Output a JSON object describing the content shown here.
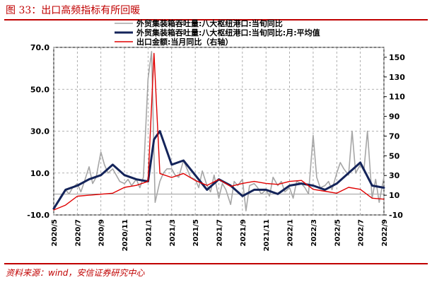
{
  "figure_title": "图 33：出口高频指标有所回暖",
  "source_note": "资料来源：wind，安信证券研究中心",
  "chart_data": {
    "type": "line",
    "left_axis": {
      "ticks": [
        "70.0",
        "50.0",
        "30.0",
        "10.0",
        "-10.0"
      ],
      "ylim": [
        -10,
        70
      ]
    },
    "right_axis": {
      "ticks": [
        "150",
        "130",
        "110",
        "90",
        "70",
        "50",
        "30",
        "10",
        "-10"
      ],
      "ylim": [
        -10,
        160
      ]
    },
    "x_labels": [
      "2020/5",
      "2020/7",
      "2020/9",
      "2020/11",
      "2021/1",
      "2021/3",
      "2021/5",
      "2021/7",
      "2021/9",
      "2021/11",
      "2022/1",
      "2022/3",
      "2022/5",
      "2022/7",
      "2022/9"
    ],
    "x_range": [
      0,
      28
    ],
    "grid": true,
    "legend_position": "top-left",
    "series": [
      {
        "name": "外贸集装箱吞吐量:八大枢纽港口:当旬同比",
        "axis": "left",
        "color": "#a6a6a6",
        "x": [
          0,
          0.3,
          0.6,
          1,
          1.3,
          1.6,
          2,
          2.3,
          2.6,
          3,
          3.3,
          3.6,
          4,
          4.3,
          4.6,
          5,
          5.3,
          5.6,
          6,
          6.3,
          6.6,
          7,
          7.3,
          7.6,
          8,
          8.3,
          8.6,
          9,
          9.3,
          9.6,
          10,
          10.3,
          10.6,
          11,
          11.3,
          11.6,
          12,
          12.3,
          12.6,
          13,
          13.3,
          13.6,
          14,
          14.3,
          14.6,
          15,
          15.3,
          15.6,
          16,
          16.3,
          16.6,
          17,
          17.3,
          17.6,
          18,
          18.3,
          18.6,
          19,
          19.3,
          19.6,
          20,
          20.3,
          20.6,
          21,
          21.3,
          21.6,
          22,
          22.3,
          22.6,
          23,
          23.3,
          23.6,
          24,
          24.3,
          24.6,
          25,
          25.3,
          25.6,
          26,
          26.3,
          26.6,
          27,
          27.3,
          27.6,
          28
        ],
        "y": [
          -8,
          -4,
          -1,
          2,
          0,
          3,
          5,
          1,
          6,
          13,
          5,
          8,
          20,
          14,
          10,
          12,
          9,
          6,
          5,
          7,
          4,
          7,
          3,
          8,
          55,
          68,
          -4,
          6,
          10,
          12,
          12,
          9,
          8,
          16,
          12,
          8,
          7,
          3,
          11,
          4,
          1,
          9,
          -2,
          5,
          2,
          -5,
          6,
          4,
          7,
          -8,
          4,
          5,
          3,
          0,
          2,
          -1,
          8,
          4,
          6,
          1,
          3,
          -2,
          6,
          5,
          3,
          0,
          28,
          8,
          3,
          4,
          6,
          2,
          10,
          15,
          12,
          9,
          30,
          10,
          14,
          11,
          30,
          -2,
          7,
          -4,
          8
        ]
      },
      {
        "name": "外贸集装箱吞吐量:八大枢纽港口:当旬同比:月:平均值",
        "axis": "left",
        "color": "#14245a",
        "x": [
          0,
          1,
          2,
          3,
          4,
          5,
          6,
          7,
          8,
          8.5,
          9,
          10,
          11,
          12,
          13,
          14,
          15,
          16,
          17,
          18,
          19,
          20,
          21,
          22,
          23,
          24,
          25,
          26,
          27,
          28
        ],
        "y": [
          -7,
          2,
          4,
          7,
          9,
          14,
          9,
          7,
          6,
          26,
          30,
          14,
          16,
          9,
          2,
          7,
          4,
          -1,
          2,
          2,
          0,
          4,
          5,
          4,
          2,
          5,
          10,
          15,
          4,
          3
        ]
      },
      {
        "name": "出口金额:当月同比（右轴）",
        "axis": "right",
        "color": "#e00000",
        "x": [
          0,
          1,
          2,
          3,
          4,
          5,
          6,
          7,
          8,
          8.5,
          9,
          10,
          11,
          12,
          13,
          14,
          15,
          16,
          17,
          18,
          19,
          20,
          21,
          22,
          23,
          24,
          25,
          26,
          27,
          28
        ],
        "y": [
          -5,
          0,
          9,
          10,
          11,
          12,
          18,
          20,
          24,
          154,
          32,
          28,
          32,
          25,
          20,
          26,
          19,
          22,
          24,
          22,
          21,
          24,
          25,
          16,
          14,
          12,
          18,
          16,
          7,
          6
        ]
      }
    ]
  }
}
